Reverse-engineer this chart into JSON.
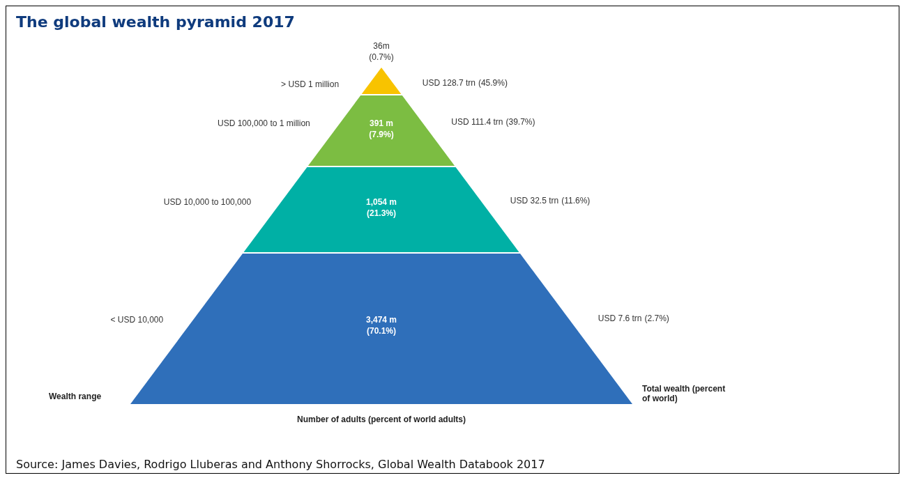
{
  "chart_data": {
    "type": "other",
    "title": "The global wealth pyramid 2017",
    "categories": [
      "> USD 1 million",
      "USD 100,000  to 1 million",
      "USD 10,000  to 100,000",
      "< USD 10,000"
    ],
    "series": [
      {
        "colors": [
          "#f8c300",
          "#7cbd42",
          "#00b0a5",
          "#2f6fba"
        ],
        "values": [
          36,
          391,
          1054,
          3474
        ],
        "value_labels": [
          "36m",
          "391 m",
          "1,054 m",
          "3,474 m"
        ]
      },
      {
        "values": [
          0.7,
          7.9,
          21.3,
          70.1
        ],
        "value_labels": [
          "(0.7%)",
          "(7.9%)",
          "(21.3%)",
          "(70.1%)"
        ]
      },
      {
        "values": [
          128.7,
          111.4,
          32.5,
          7.6
        ],
        "value_labels": [
          "USD 128.7 trn",
          "USD 111.4 trn",
          "USD 32.5 trn",
          "USD 7.6 trn"
        ]
      },
      {
        "values": [
          45.9,
          39.7,
          11.6,
          2.7
        ],
        "value_labels": [
          "(45.9%)",
          "(39.7%)",
          "(11.6%)",
          "(2.7%)"
        ]
      }
    ],
    "ylabel": "Wealth range",
    "y2label": "Total wealth (percent of world)",
    "xlabel": "Number of adults (percent of world adults)",
    "annotations": [
      "Source: James Davies, Rodrigo Lluberas and Anthony Shorrocks, Global Wealth Databook 2017"
    ]
  }
}
